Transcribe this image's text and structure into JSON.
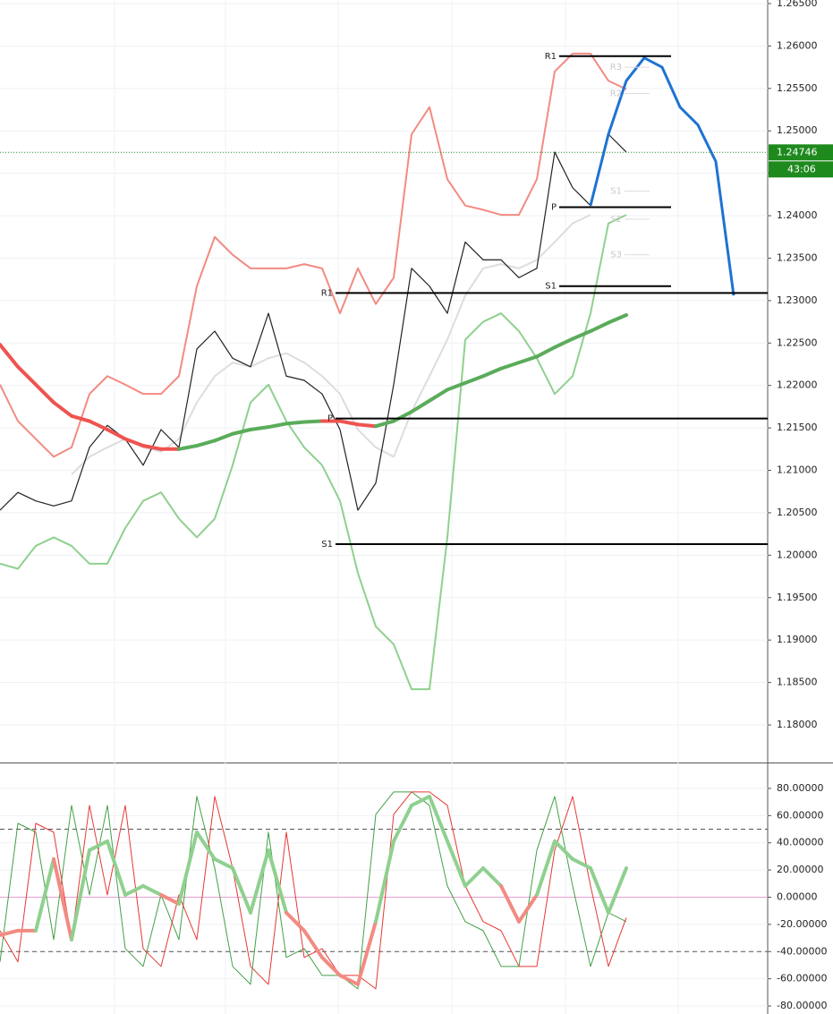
{
  "chart_data": [
    {
      "type": "line",
      "ylim": [
        1.17557,
        1.26542
      ],
      "yticks": [
        {
          "value": 1.265,
          "label": "1.26500"
        },
        {
          "value": 1.26,
          "label": "1.26000"
        },
        {
          "value": 1.255,
          "label": "1.25500"
        },
        {
          "value": 1.25,
          "label": "1.25000"
        },
        {
          "value": 1.245,
          "label": "1.24500"
        },
        {
          "value": 1.24,
          "label": "1.24000"
        },
        {
          "value": 1.235,
          "label": "1.23500"
        },
        {
          "value": 1.23,
          "label": "1.23000"
        },
        {
          "value": 1.225,
          "label": "1.22500"
        },
        {
          "value": 1.22,
          "label": "1.22000"
        },
        {
          "value": 1.215,
          "label": "1.21500"
        },
        {
          "value": 1.21,
          "label": "1.21000"
        },
        {
          "value": 1.205,
          "label": "1.20500"
        },
        {
          "value": 1.2,
          "label": "1.20000"
        },
        {
          "value": 1.195,
          "label": "1.19500"
        },
        {
          "value": 1.19,
          "label": "1.19000"
        },
        {
          "value": 1.185,
          "label": "1.18500"
        },
        {
          "value": 1.18,
          "label": "1.18000"
        }
      ],
      "grid": true,
      "last_price": 1.24746,
      "last_price_color": "#1e8a1e",
      "countdown": "43:06",
      "series": [
        {
          "color": "#f28b82",
          "width": 2,
          "values": [
            1.2201,
            1.2158,
            1.2137,
            1.2116,
            1.2127,
            1.219,
            1.2211,
            1.2201,
            1.219,
            1.219,
            1.2211,
            1.2317,
            1.2375,
            1.2354,
            1.2338,
            1.2338,
            1.2338,
            1.2343,
            1.2338,
            1.2285,
            1.2338,
            1.2296,
            1.2327,
            1.2496,
            1.2528,
            1.2443,
            1.2412,
            1.2407,
            1.2401,
            1.2401,
            1.2443,
            1.257,
            1.2591,
            1.2591,
            1.2559,
            1.2549,
            null,
            null,
            null,
            null,
            null,
            null
          ]
        },
        {
          "color": "#8fd08f",
          "width": 2,
          "values": [
            1.199,
            1.1984,
            1.2011,
            1.2021,
            1.2011,
            1.199,
            1.199,
            1.2032,
            1.2064,
            1.2074,
            1.2043,
            1.2021,
            1.2043,
            1.2106,
            1.218,
            1.2201,
            1.2158,
            1.2127,
            1.2106,
            1.2064,
            1.1979,
            1.1916,
            1.1895,
            1.1842,
            1.1842,
            1.2021,
            1.2254,
            1.2275,
            1.2285,
            1.2264,
            1.2232,
            1.219,
            1.2211,
            1.2285,
            1.2391,
            1.2401,
            null,
            null,
            null,
            null,
            null,
            null
          ]
        },
        {
          "color": "#dddddd",
          "width": 2,
          "values": [
            null,
            null,
            null,
            null,
            1.2095,
            1.2116,
            1.2127,
            1.2137,
            1.2127,
            1.2122,
            1.2137,
            1.218,
            1.2211,
            1.2227,
            1.2222,
            1.2232,
            1.2238,
            1.2227,
            1.2211,
            1.219,
            1.2148,
            1.2127,
            1.2116,
            1.2169,
            1.2211,
            1.2254,
            1.2306,
            1.2338,
            1.2343,
            1.2338,
            1.2348,
            1.2369,
            1.2391,
            1.2401,
            null,
            null,
            null,
            null,
            null,
            null,
            null,
            null
          ]
        },
        {
          "color": "#222222",
          "width": 1.2,
          "values": [
            1.2053,
            1.2074,
            1.2064,
            1.2058,
            1.2064,
            1.2127,
            1.2153,
            1.2137,
            1.2106,
            1.2148,
            1.2127,
            1.2243,
            1.2264,
            1.2232,
            1.2222,
            1.2285,
            1.2211,
            1.2206,
            1.219,
            1.2148,
            1.2053,
            1.2085,
            1.2201,
            1.2338,
            1.2317,
            1.2285,
            1.2369,
            1.2348,
            1.2348,
            1.2327,
            1.2338,
            1.2475,
            1.2433,
            1.2412,
            1.2496,
            1.2475,
            null,
            null,
            null,
            null,
            null,
            null
          ]
        },
        {
          "color": "#5aac5a",
          "down_color": "#ef5350",
          "color_rule": "slope",
          "width": 4,
          "values": [
            1.2248,
            1.2222,
            1.2201,
            1.218,
            1.2164,
            1.2158,
            1.2148,
            1.2137,
            1.2129,
            1.2125,
            1.2125,
            1.2129,
            1.2135,
            1.2143,
            1.2148,
            1.2151,
            1.2155,
            1.2157,
            1.2158,
            1.2158,
            1.2154,
            1.2152,
            1.2158,
            1.2169,
            1.2182,
            1.2195,
            1.2203,
            1.2211,
            1.222,
            1.2227,
            1.2234,
            1.2245,
            1.2255,
            1.2264,
            1.2274,
            1.2283,
            null,
            null,
            null,
            null,
            null,
            null
          ]
        },
        {
          "color": "#1e73d2",
          "width": 3,
          "values": [
            null,
            null,
            null,
            null,
            null,
            null,
            null,
            null,
            null,
            null,
            null,
            null,
            null,
            null,
            null,
            null,
            null,
            null,
            null,
            null,
            null,
            null,
            null,
            null,
            null,
            null,
            null,
            null,
            null,
            null,
            null,
            null,
            null,
            1.2412,
            1.2496,
            1.2559,
            1.2586,
            1.2575,
            1.2528,
            1.2507,
            1.2464,
            1.2306
          ]
        }
      ],
      "pivots_left": [
        {
          "label": "R1",
          "value": 1.2309
        },
        {
          "label": "P",
          "value": 1.2161
        },
        {
          "label": "S1",
          "value": 1.2013
        }
      ],
      "pivots_right": [
        {
          "label": "R1",
          "value": 1.2588
        },
        {
          "label": "P",
          "value": 1.241
        },
        {
          "label": "S1",
          "value": 1.2317
        }
      ],
      "pivots_faint": [
        {
          "label": "R3",
          "value": 1.2575
        },
        {
          "label": "R2",
          "value": 1.2544
        },
        {
          "label": "S1",
          "value": 1.2429
        },
        {
          "label": "S2",
          "value": 1.2396
        },
        {
          "label": "S3",
          "value": 1.2354
        }
      ]
    },
    {
      "type": "line",
      "ylim": [
        -85.9,
        98.4
      ],
      "yticks": [
        {
          "value": 80,
          "label": "80.00000"
        },
        {
          "value": 60,
          "label": "60.00000"
        },
        {
          "value": 40,
          "label": "40.00000"
        },
        {
          "value": 20,
          "label": "20.00000"
        },
        {
          "value": 0,
          "label": "0.00000"
        },
        {
          "value": -20,
          "label": "-20.00000"
        },
        {
          "value": -40,
          "label": "-40.00000"
        },
        {
          "value": -60,
          "label": "-60.00000"
        },
        {
          "value": -80,
          "label": "-80.00000"
        }
      ],
      "grid": true,
      "levels": [
        50,
        -40
      ],
      "mid_level": 0,
      "series": [
        {
          "color": "#43a047",
          "width": 1,
          "values": [
            -47.6,
            54.3,
            47.8,
            -31.2,
            67.5,
            1.7,
            67.5,
            -37.8,
            -50.9,
            1.7,
            -31.2,
            74.1,
            21.4,
            -50.9,
            -64.1,
            47.8,
            -44.3,
            -37.8,
            -57.5,
            -57.5,
            -67.4,
            60.9,
            77.4,
            77.4,
            67.5,
            8.3,
            -18.0,
            -24.6,
            -50.9,
            -50.9,
            34.6,
            74.1,
            8.3,
            -50.9,
            -11.4,
            -18.0,
            null,
            null,
            null,
            null,
            null,
            null
          ]
        },
        {
          "color": "#e53935",
          "width": 1,
          "values": [
            -24.6,
            -47.6,
            54.3,
            47.8,
            -31.2,
            67.5,
            1.7,
            67.5,
            -37.8,
            -50.9,
            1.7,
            -31.2,
            74.1,
            21.4,
            -50.9,
            -64.1,
            47.8,
            -44.3,
            -37.8,
            -57.5,
            -57.5,
            -67.4,
            60.9,
            77.4,
            77.4,
            67.5,
            8.3,
            -18.0,
            -24.6,
            -50.9,
            -50.9,
            34.6,
            74.1,
            8.3,
            -50.9,
            -15.0,
            null,
            null,
            null,
            null,
            null,
            null
          ]
        },
        {
          "color": "#8fd08f",
          "down_color": "#f28b82",
          "color_rule": "sign",
          "width": 4,
          "values": [
            -27.9,
            -24.6,
            -24.6,
            28.0,
            -31.2,
            34.6,
            41.2,
            1.7,
            8.3,
            1.7,
            -4.9,
            47.8,
            28.0,
            21.4,
            -11.4,
            34.6,
            -11.4,
            -24.6,
            -44.3,
            -57.5,
            -64.1,
            -18.0,
            41.2,
            67.5,
            74.1,
            41.2,
            8.3,
            21.4,
            8.3,
            -18.0,
            1.7,
            41.2,
            28.0,
            21.4,
            -11.4,
            21.4,
            null,
            null,
            null,
            null,
            null,
            null
          ]
        }
      ]
    }
  ]
}
